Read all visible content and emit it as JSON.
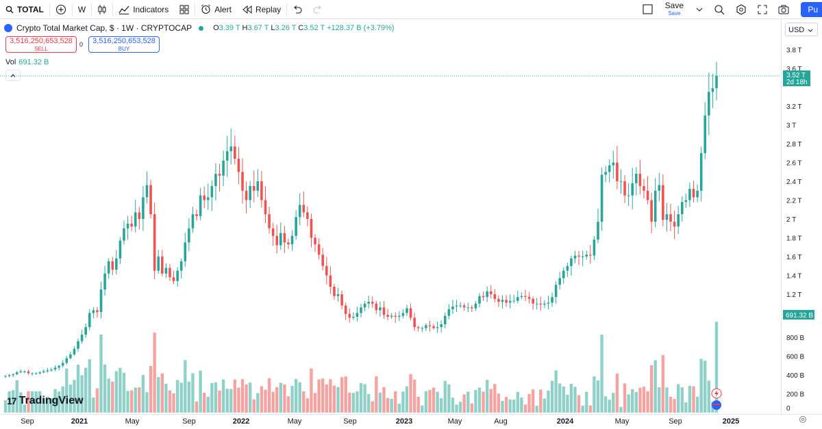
{
  "toolbar": {
    "symbol": "TOTAL",
    "interval": "W",
    "indicators": "Indicators",
    "alert": "Alert",
    "replay": "Replay",
    "save": "Save",
    "save_sub": "Save",
    "publish": "Pu"
  },
  "legend": {
    "title": "Crypto Total Market Cap, $ · 1W · CRYPTOCAP",
    "o": "3.39 T",
    "h": "3.67 T",
    "l": "3.26 T",
    "c": "3.52 T",
    "change": "+128.37 B (+3.79%)"
  },
  "trade": {
    "sell_price": "3,516,250,653,528",
    "sell_label": "SELL",
    "spread": "0",
    "buy_price": "3,516,250,653,528",
    "buy_label": "BUY"
  },
  "volume": {
    "label": "Vol",
    "value": "691.32 B"
  },
  "currency": "USD",
  "price_axis": [
    "3.8 T",
    "3.6 T",
    "3.2 T",
    "3 T",
    "2.8 T",
    "2.6 T",
    "2.4 T",
    "2.2 T",
    "2 T",
    "1.8 T",
    "1.6 T",
    "1.4 T",
    "1.2 T"
  ],
  "volume_axis": [
    "800 B",
    "600 B",
    "400 B",
    "200 B",
    "0"
  ],
  "last_price_label": {
    "price": "3.52 T",
    "countdown": "2d 18h"
  },
  "last_volume_label": "691.32 B",
  "time_axis": [
    "Sep",
    "2021",
    "May",
    "Sep",
    "2022",
    "May",
    "Sep",
    "2023",
    "May",
    "Aug",
    "2024",
    "May",
    "Sep",
    "2025"
  ],
  "brand": "TradingView",
  "colors": {
    "up": "#26a69a",
    "down": "#ef5350",
    "vol_up": "#8fd1c9",
    "vol_down": "#f5a3a0",
    "accent": "#2962ff"
  },
  "chart_data": {
    "type": "candlestick",
    "price_unit": "T USD",
    "volume_unit": "B USD",
    "closes": [
      0.33,
      0.34,
      0.35,
      0.37,
      0.38,
      0.38,
      0.36,
      0.36,
      0.36,
      0.37,
      0.38,
      0.39,
      0.4,
      0.42,
      0.44,
      0.47,
      0.52,
      0.56,
      0.62,
      0.7,
      0.77,
      0.85,
      1.0,
      1.03,
      1.01,
      1.25,
      1.42,
      1.55,
      1.46,
      1.58,
      1.77,
      1.9,
      1.95,
      1.92,
      2.07,
      2.0,
      2.23,
      2.36,
      2.05,
      1.45,
      1.6,
      1.42,
      1.48,
      1.38,
      1.34,
      1.45,
      1.55,
      1.75,
      1.9,
      2.05,
      2.03,
      2.25,
      2.2,
      2.23,
      2.35,
      2.48,
      2.46,
      2.62,
      2.72,
      2.77,
      2.64,
      2.5,
      2.3,
      2.2,
      2.35,
      2.3,
      2.4,
      2.2,
      2.05,
      1.9,
      1.82,
      1.72,
      1.85,
      1.75,
      1.73,
      1.82,
      2.02,
      2.15,
      2.07,
      2.0,
      1.8,
      1.73,
      1.62,
      1.5,
      1.4,
      1.28,
      1.18,
      1.2,
      1.08,
      0.99,
      0.95,
      0.96,
      1.0,
      1.06,
      1.1,
      1.12,
      1.1,
      1.03,
      1.06,
      0.98,
      0.96,
      0.97,
      0.96,
      0.97,
      1.0,
      1.05,
      0.95,
      0.85,
      0.84,
      0.84,
      0.87,
      0.86,
      0.84,
      0.85,
      0.88,
      0.97,
      1.04,
      1.07,
      1.08,
      1.08,
      1.06,
      1.06,
      1.05,
      1.1,
      1.18,
      1.17,
      1.23,
      1.2,
      1.15,
      1.12,
      1.14,
      1.11,
      1.13,
      1.13,
      1.17,
      1.18,
      1.17,
      1.15,
      1.1,
      1.1,
      1.09,
      1.1,
      1.11,
      1.17,
      1.3,
      1.37,
      1.45,
      1.5,
      1.58,
      1.61,
      1.6,
      1.6,
      1.62,
      1.61,
      1.78,
      1.97,
      2.47,
      2.5,
      2.57,
      2.6,
      2.4,
      2.4,
      2.25,
      2.25,
      2.38,
      2.48,
      2.35,
      2.3,
      2.2,
      1.97,
      2.3,
      2.36,
      1.99,
      2.05,
      1.97,
      1.92,
      2.05,
      2.18,
      2.2,
      2.32,
      2.23,
      2.3,
      2.7,
      3.1,
      3.35,
      3.39,
      3.52
    ],
    "last": {
      "open": 3.39,
      "high": 3.67,
      "low": 3.26,
      "close": 3.52,
      "change": 128.37,
      "change_pct": 3.79,
      "volume": 691.32
    },
    "volume_max_B": 691.32,
    "price_axis_range_T": [
      0.6,
      3.9
    ]
  }
}
